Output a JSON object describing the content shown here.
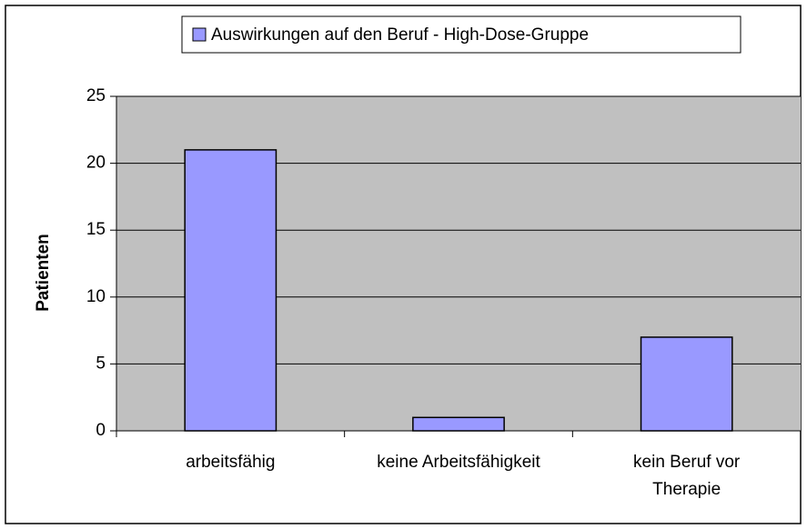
{
  "chart_data": {
    "type": "bar",
    "y_label": "Patienten",
    "categories": [
      "arbeitsfähig",
      "keine Arbeitsfähigkeit",
      "kein Beruf vor Therapie"
    ],
    "series": [
      {
        "name": "Auswirkungen auf den Beruf - High-Dose-Gruppe",
        "color": "#9999ff",
        "values": [
          21,
          1,
          7
        ]
      }
    ],
    "ylim": [
      0,
      25
    ],
    "yticks": [
      0,
      5,
      10,
      15,
      20,
      25
    ],
    "grid": true,
    "plot_background": "#c0c0c0",
    "legend": "top"
  }
}
